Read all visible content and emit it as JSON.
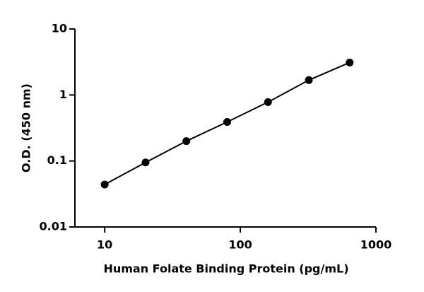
{
  "chart_data": {
    "type": "line",
    "x_label": "Human Folate Binding Protein (pg/mL)",
    "y_label": "O.D. (450 nm)",
    "x": [
      10,
      20,
      40,
      80,
      160,
      320,
      640
    ],
    "series": [
      {
        "values": [
          0.044,
          0.095,
          0.2,
          0.39,
          0.78,
          1.68,
          3.1
        ],
        "color": "#000000"
      }
    ],
    "xlim": [
      6.25,
      1000
    ],
    "xticks": [
      10,
      100,
      1000
    ],
    "ylim": [
      0.01,
      10
    ],
    "yticks": [
      0.01,
      0.1,
      1,
      10
    ],
    "xscale": "log",
    "yscale": "log",
    "grid": false
  }
}
